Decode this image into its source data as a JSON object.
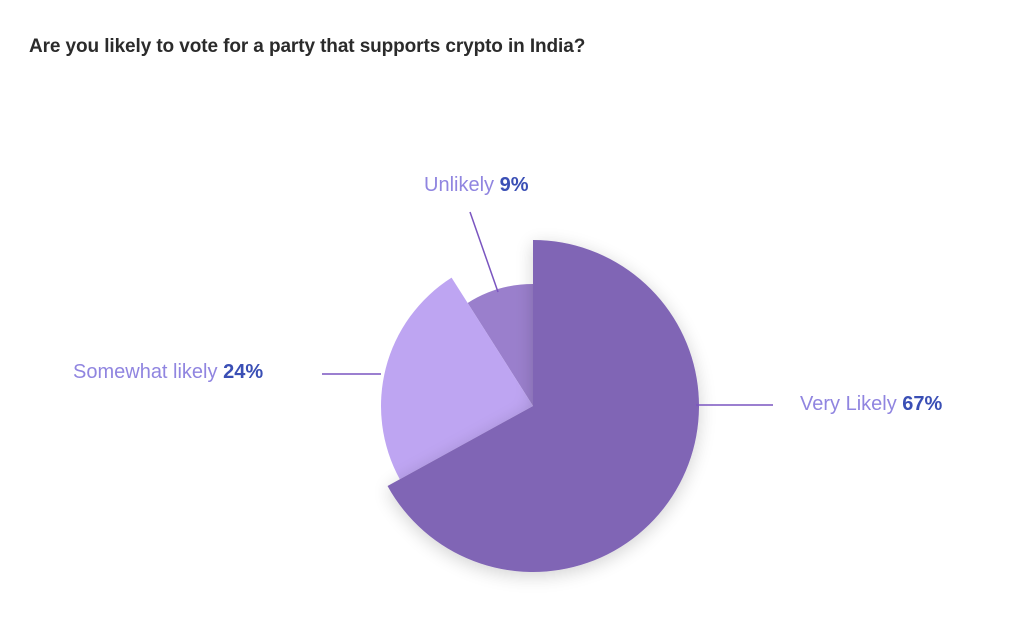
{
  "title": "Are you likely to vote for a party that supports crypto in India?",
  "chart_data": {
    "type": "pie",
    "title": "Are you likely to vote for a party that supports crypto in India?",
    "categories": [
      "Very Likely",
      "Somewhat likely",
      "Unlikely"
    ],
    "values": [
      67,
      24,
      9
    ],
    "unit": "%",
    "colors": [
      "#8065b5",
      "#bea5f2",
      "#9a7fcc"
    ],
    "labels": [
      {
        "name": "Very Likely",
        "pct": "67%"
      },
      {
        "name": "Somewhat likely",
        "pct": "24%"
      },
      {
        "name": "Unlikely",
        "pct": "9%"
      }
    ],
    "legend": "inline labels with leader lines"
  },
  "colors": {
    "label_text": "#9085e0",
    "pct_text": "#3a4fb5",
    "leader_line": "#7a55c0"
  }
}
